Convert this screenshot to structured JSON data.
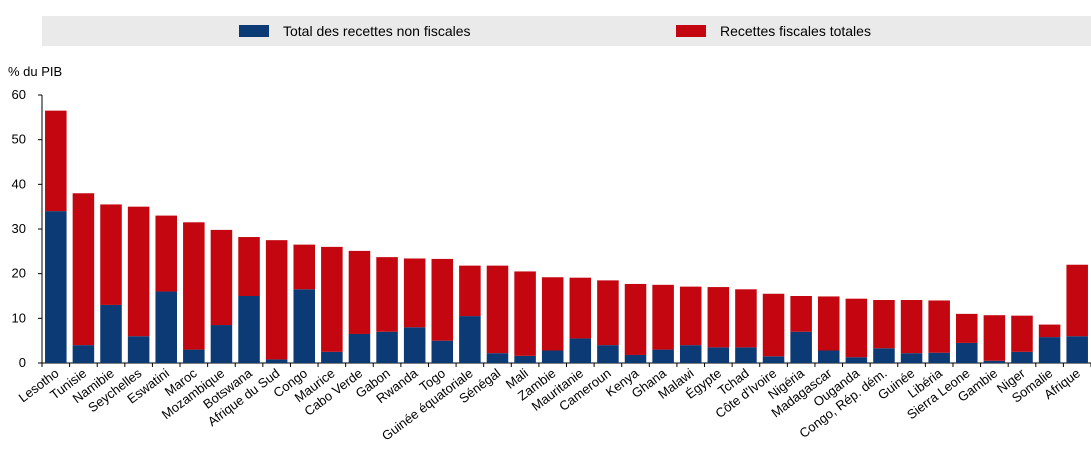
{
  "chart_data": {
    "type": "bar",
    "stacked": true,
    "ylabel": "% du PIB",
    "ylim": [
      0,
      60
    ],
    "yticks": [
      0,
      10,
      20,
      30,
      40,
      50,
      60
    ],
    "grid": false,
    "legend_position": "top",
    "categories": [
      "Lesotho",
      "Tunisie",
      "Namibie",
      "Seychelles",
      "Eswatini",
      "Maroc",
      "Mozambique",
      "Botswana",
      "Afrique du Sud",
      "Congo",
      "Maurice",
      "Cabo Verde",
      "Gabon",
      "Rwanda",
      "Togo",
      "Guinée équatoriale",
      "Sénégal",
      "Mali",
      "Zambie",
      "Mauritanie",
      "Cameroun",
      "Kenya",
      "Ghana",
      "Malawi",
      "Égypte",
      "Tchad",
      "Côte d'Ivoire",
      "Nigéria",
      "Madagascar",
      "Ouganda",
      "Congo, Rép. dém.",
      "Guinée",
      "Libéria",
      "Sierra Leone",
      "Gambie",
      "Niger",
      "Somalie",
      "Afrique"
    ],
    "series": [
      {
        "name": "Total des recettes non fiscales",
        "color": "#0b3a74",
        "values": [
          34,
          4,
          13,
          6,
          16,
          3,
          8.5,
          15,
          0.8,
          16.5,
          2.5,
          6.5,
          7,
          8,
          5,
          10.5,
          2.2,
          1.6,
          2.8,
          5.5,
          4,
          1.8,
          3,
          4,
          3.5,
          3.5,
          1.5,
          7,
          2.8,
          1.3,
          3.3,
          2.2,
          2.3,
          4.5,
          0.5,
          2.5,
          5.8,
          6
        ]
      },
      {
        "name": "Recettes fiscales totales",
        "color": "#c3060f",
        "values": [
          22.5,
          34,
          22.5,
          29,
          17,
          28.5,
          21.3,
          13.2,
          26.7,
          10,
          23.5,
          18.6,
          16.7,
          15.4,
          18.3,
          11.3,
          19.6,
          18.9,
          16.4,
          13.6,
          14.5,
          15.9,
          14.5,
          13.1,
          13.5,
          13,
          14,
          8,
          12.1,
          13.1,
          10.8,
          11.9,
          11.7,
          6.5,
          10.2,
          8.1,
          2.8,
          16
        ]
      }
    ]
  },
  "legend": {
    "item1": {
      "label": "Total des recettes non fiscales",
      "color": "#0b3a74"
    },
    "item2": {
      "label": "Recettes fiscales totales",
      "color": "#c3060f"
    }
  }
}
